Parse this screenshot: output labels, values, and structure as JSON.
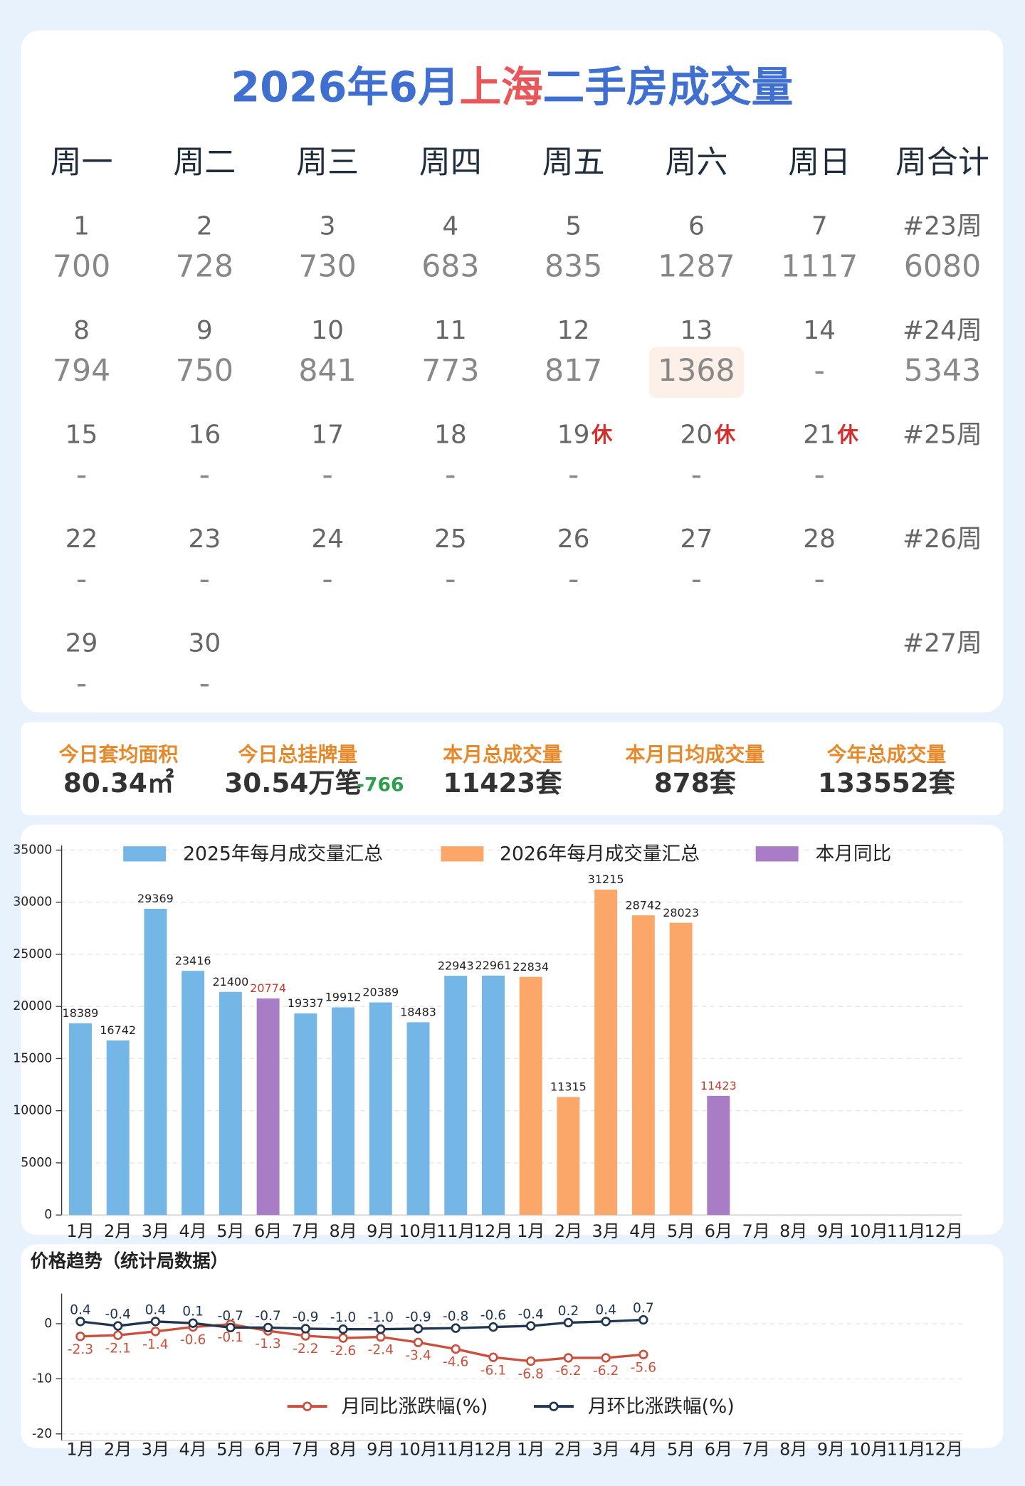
{
  "title": {
    "parts": [
      {
        "text": "2026年6月",
        "color": "#3f6fd1"
      },
      {
        "text": "上海",
        "color": "#e8585a"
      },
      {
        "text": "二手房成交量",
        "color": "#3f6fd1"
      }
    ]
  },
  "calendar": {
    "headers": [
      "周一",
      "周二",
      "周三",
      "周四",
      "周五",
      "周六",
      "周日",
      "周合计"
    ],
    "total_color": "#6b9ac8",
    "weeks": [
      {
        "label": "#23周",
        "total": 6080,
        "days": [
          {
            "date": 1,
            "value": 700,
            "color": "#3aaa35"
          },
          {
            "date": 2,
            "value": 728,
            "color": "#d9363a"
          },
          {
            "date": 3,
            "value": 730,
            "color": "#3aaa35"
          },
          {
            "date": 4,
            "value": 683,
            "color": "#3aaa35"
          },
          {
            "date": 5,
            "value": 835,
            "color": "#3aaa35"
          },
          {
            "date": 6,
            "value": 1287,
            "color": "#3aaa35"
          },
          {
            "date": 7,
            "value": 1117,
            "color": "#3aaa35"
          }
        ]
      },
      {
        "label": "#24周",
        "total": 5343,
        "days": [
          {
            "date": 8,
            "value": 794,
            "color": "#d9363a"
          },
          {
            "date": 9,
            "value": 750,
            "color": "#d9363a"
          },
          {
            "date": 10,
            "value": 841,
            "color": "#d9363a"
          },
          {
            "date": 11,
            "value": 773,
            "color": "#d9363a"
          },
          {
            "date": 12,
            "value": 817,
            "color": "#3aaa35"
          },
          {
            "date": 13,
            "value": 1368,
            "color": "#d9363a",
            "highlight": true
          },
          {
            "date": 14,
            "value": "-"
          }
        ]
      },
      {
        "label": "#25周",
        "days": [
          {
            "date": 15,
            "value": "-"
          },
          {
            "date": 16,
            "value": "-"
          },
          {
            "date": 17,
            "value": "-"
          },
          {
            "date": 18,
            "value": "-"
          },
          {
            "date": 19,
            "value": "-",
            "note": "休"
          },
          {
            "date": 20,
            "value": "-",
            "note": "休"
          },
          {
            "date": 21,
            "value": "-",
            "note": "休"
          }
        ]
      },
      {
        "label": "#26周",
        "days": [
          {
            "date": 22,
            "value": "-"
          },
          {
            "date": 23,
            "value": "-"
          },
          {
            "date": 24,
            "value": "-"
          },
          {
            "date": 25,
            "value": "-"
          },
          {
            "date": 26,
            "value": "-"
          },
          {
            "date": 27,
            "value": "-"
          },
          {
            "date": 28,
            "value": "-"
          }
        ]
      },
      {
        "label": "#27周",
        "days": [
          {
            "date": 29,
            "value": "-"
          },
          {
            "date": 30,
            "value": "-"
          }
        ]
      }
    ]
  },
  "stats": [
    {
      "label": "今日套均面积",
      "value": "80.34㎡"
    },
    {
      "label": "今日总挂牌量",
      "value": "30.54万笔",
      "change": "-766"
    },
    {
      "label": "本月总成交量",
      "value": "11423套"
    },
    {
      "label": "本月日均成交量",
      "value": "878套"
    },
    {
      "label": "今年总成交量",
      "value": "133552套"
    }
  ],
  "chart_data": [
    {
      "type": "bar",
      "categories": [
        "1月",
        "2月",
        "3月",
        "4月",
        "5月",
        "6月",
        "7月",
        "8月",
        "9月",
        "10月",
        "11月",
        "12月",
        "1月",
        "2月",
        "3月",
        "4月",
        "5月",
        "6月",
        "7月",
        "8月",
        "9月",
        "10月",
        "11月",
        "12月"
      ],
      "ylim": [
        0,
        35000
      ],
      "yticks": [
        0,
        5000,
        10000,
        15000,
        20000,
        25000,
        30000,
        35000
      ],
      "grid": true,
      "series": [
        {
          "name": "2025年每月成交量汇总",
          "color": "#74b6e6",
          "values": [
            18389,
            16742,
            29369,
            23416,
            21400,
            null,
            19337,
            19912,
            20389,
            18483,
            22943,
            22961,
            null,
            null,
            null,
            null,
            null,
            null,
            null,
            null,
            null,
            null,
            null,
            null
          ]
        },
        {
          "name": "2026年每月成交量汇总",
          "color": "#fba76a",
          "values": [
            null,
            null,
            null,
            null,
            null,
            null,
            null,
            null,
            null,
            null,
            null,
            null,
            22834,
            11315,
            31215,
            28742,
            28023,
            null,
            null,
            null,
            null,
            null,
            null,
            null
          ]
        },
        {
          "name": "本月同比",
          "color": "#a97cc6",
          "label_color": "#c0392b",
          "values": [
            null,
            null,
            null,
            null,
            null,
            20774,
            null,
            null,
            null,
            null,
            null,
            null,
            null,
            null,
            null,
            null,
            null,
            11423,
            null,
            null,
            null,
            null,
            null,
            null
          ]
        }
      ]
    },
    {
      "type": "line",
      "title": "价格趋势（统计局数据）",
      "categories": [
        "1月",
        "2月",
        "3月",
        "4月",
        "5月",
        "6月",
        "7月",
        "8月",
        "9月",
        "10月",
        "11月",
        "12月",
        "1月",
        "2月",
        "3月",
        "4月",
        "5月",
        "6月",
        "7月",
        "8月",
        "9月",
        "10月",
        "11月",
        "12月"
      ],
      "ylim": [
        -21.2,
        4.6
      ],
      "yticks": [
        0,
        -10,
        -20
      ],
      "grid": true,
      "series": [
        {
          "name": "月同比涨跌幅(%)",
          "color": "#c8503c",
          "label_position": "below",
          "values": [
            -2.3,
            -2.1,
            -1.4,
            -0.6,
            -0.1,
            -1.3,
            -2.2,
            -2.6,
            -2.4,
            -3.4,
            -4.6,
            -6.1,
            -6.8,
            -6.2,
            -6.2,
            -5.6,
            null,
            null,
            null,
            null,
            null,
            null,
            null,
            null
          ],
          "value_labels": [
            "-2.3",
            "-2.1",
            "-1.4",
            "-0.6",
            "-0.1",
            "-1.3",
            "-2.2",
            "-2.6",
            "-2.4",
            "-3.4",
            "-4.6",
            "-6.1",
            "-6.8",
            "-6.2",
            "-6.2",
            "-5.6",
            null,
            null,
            null,
            null,
            null,
            null,
            null,
            null
          ]
        },
        {
          "name": "月环比涨跌幅(%)",
          "color": "#1f3550",
          "label_position": "above",
          "values": [
            0.4,
            -0.4,
            0.4,
            0.1,
            -0.7,
            -0.7,
            -0.9,
            -1.0,
            -1.0,
            -0.9,
            -0.8,
            -0.6,
            -0.4,
            0.2,
            0.4,
            0.7,
            null,
            null,
            null,
            null,
            null,
            null,
            null,
            null
          ],
          "value_labels": [
            "0.4",
            "-0.4",
            "0.4",
            "0.1",
            "-0.7",
            "-0.7",
            "-0.9",
            "-1.0",
            "-1.0",
            "-0.9",
            "-0.8",
            "-0.6",
            "-0.4",
            "0.2",
            "0.4",
            "0.7",
            null,
            null,
            null,
            null,
            null,
            null,
            null,
            null
          ]
        }
      ]
    }
  ]
}
